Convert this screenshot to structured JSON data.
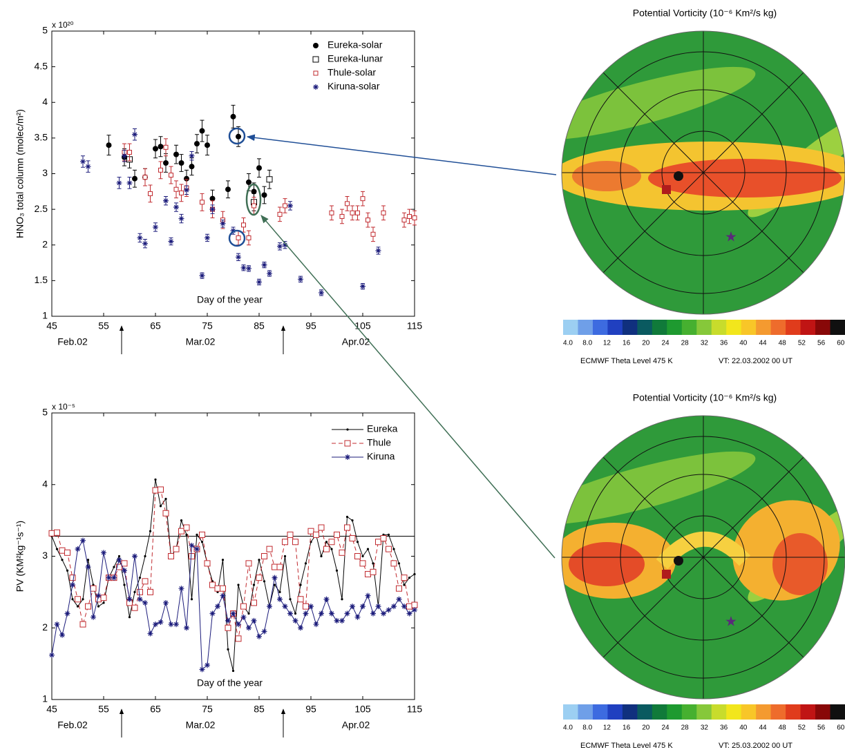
{
  "chart_data": [
    {
      "type": "scatter",
      "exponent": "x 10²⁰",
      "y_label": "HNO₃ total column (molec/m²)",
      "annotation": "Day of the year",
      "month_labels": [
        "Feb.02",
        "Mar.02",
        "Apr.02"
      ],
      "xlim": [
        45,
        115
      ],
      "xticks": [
        45,
        55,
        65,
        75,
        85,
        95,
        105,
        115
      ],
      "ylim": [
        1,
        5
      ],
      "yticks": [
        1,
        1.5,
        2,
        2.5,
        3,
        3.5,
        4,
        4.5,
        5
      ],
      "legend": "upper-right",
      "series": [
        {
          "name": "Eureka-solar",
          "color": "#000000",
          "marker": "circle-filled",
          "x": [
            56,
            59,
            61,
            63,
            65,
            66,
            67,
            69,
            70,
            71,
            72,
            73,
            74,
            75,
            76,
            79,
            80,
            81,
            83,
            84,
            85,
            86
          ],
          "values": [
            3.4,
            3.23,
            2.93,
            2.95,
            3.35,
            3.38,
            3.15,
            3.27,
            3.15,
            2.93,
            3.1,
            3.42,
            3.6,
            3.4,
            2.65,
            2.78,
            3.8,
            3.52,
            2.88,
            2.75,
            3.08,
            2.7
          ],
          "errors": [
            0.14,
            0.12,
            0.12,
            0.12,
            0.13,
            0.14,
            0.13,
            0.13,
            0.12,
            0.12,
            0.12,
            0.13,
            0.15,
            0.14,
            0.12,
            0.12,
            0.16,
            0.14,
            0.12,
            0.12,
            0.13,
            0.12
          ]
        },
        {
          "name": "Eureka-lunar",
          "color": "#000000",
          "marker": "square-open",
          "x": [
            60,
            84,
            87
          ],
          "values": [
            3.2,
            2.6,
            2.92
          ],
          "errors": [
            0.12,
            0.12,
            0.13
          ]
        },
        {
          "name": "Thule-solar",
          "color": "#c0282d",
          "marker": "square-small",
          "x": [
            59,
            60,
            63,
            64,
            66,
            67,
            68,
            69,
            70,
            71,
            74,
            76,
            78,
            81,
            82,
            83,
            84,
            89,
            90,
            99,
            101,
            102,
            103,
            104,
            105,
            106,
            107,
            109,
            113,
            114,
            115
          ],
          "values": [
            3.3,
            3.3,
            2.95,
            2.72,
            3.05,
            3.37,
            2.98,
            2.78,
            2.73,
            2.8,
            2.6,
            2.5,
            2.35,
            2.1,
            2.28,
            2.1,
            2.55,
            2.43,
            2.55,
            2.45,
            2.4,
            2.58,
            2.45,
            2.45,
            2.65,
            2.35,
            2.15,
            2.45,
            2.35,
            2.4,
            2.38
          ],
          "errors": [
            0.12,
            0.12,
            0.12,
            0.12,
            0.12,
            0.12,
            0.12,
            0.12,
            0.12,
            0.12,
            0.12,
            0.12,
            0.12,
            0.1,
            0.1,
            0.1,
            0.12,
            0.1,
            0.1,
            0.1,
            0.1,
            0.1,
            0.1,
            0.1,
            0.1,
            0.1,
            0.1,
            0.1,
            0.1,
            0.1,
            0.1
          ]
        },
        {
          "name": "Kiruna-solar",
          "color": "#1a1a7a",
          "marker": "asterisk",
          "x": [
            51,
            52,
            58,
            59,
            60,
            61,
            62,
            63,
            65,
            67,
            68,
            69,
            70,
            71,
            72,
            74,
            75,
            76,
            78,
            80,
            81,
            82,
            83,
            85,
            86,
            87,
            89,
            90,
            91,
            93,
            97,
            105,
            108
          ],
          "values": [
            3.17,
            3.1,
            2.87,
            3.25,
            2.87,
            3.55,
            2.1,
            2.02,
            2.25,
            2.62,
            2.05,
            2.53,
            2.37,
            2.77,
            3.25,
            1.57,
            2.1,
            2.5,
            2.3,
            2.2,
            1.83,
            1.68,
            1.67,
            1.48,
            1.72,
            1.6,
            1.98,
            2.0,
            2.55,
            1.52,
            1.33,
            1.42,
            1.92
          ],
          "errors": [
            0.08,
            0.08,
            0.08,
            0.08,
            0.08,
            0.08,
            0.06,
            0.06,
            0.06,
            0.06,
            0.05,
            0.06,
            0.06,
            0.06,
            0.06,
            0.04,
            0.05,
            0.06,
            0.05,
            0.05,
            0.05,
            0.04,
            0.04,
            0.04,
            0.04,
            0.04,
            0.05,
            0.05,
            0.06,
            0.04,
            0.04,
            0.04,
            0.05
          ]
        }
      ]
    },
    {
      "type": "line",
      "exponent": "x 10⁻⁵",
      "y_label": "PV (KM²kg⁻¹s⁻¹)",
      "annotation": "Day of the year",
      "month_labels": [
        "Feb.02",
        "Mar.02",
        "Apr.02"
      ],
      "xlim": [
        45,
        115
      ],
      "xticks": [
        45,
        55,
        65,
        75,
        85,
        95,
        105,
        115
      ],
      "ylim": [
        1,
        5
      ],
      "yticks": [
        1,
        2,
        3,
        4,
        5
      ],
      "hline": 3.28,
      "legend": "upper-right",
      "x": [
        45,
        46,
        47,
        48,
        49,
        50,
        51,
        52,
        53,
        54,
        55,
        56,
        57,
        58,
        59,
        60,
        61,
        62,
        63,
        64,
        65,
        66,
        67,
        68,
        69,
        70,
        71,
        72,
        73,
        74,
        75,
        76,
        77,
        78,
        79,
        80,
        81,
        82,
        83,
        84,
        85,
        86,
        87,
        88,
        89,
        90,
        91,
        92,
        93,
        94,
        95,
        96,
        97,
        98,
        99,
        100,
        101,
        102,
        103,
        104,
        105,
        106,
        107,
        108,
        109,
        110,
        111,
        112,
        113,
        114,
        115
      ],
      "series": [
        {
          "name": "Eureka",
          "color": "#000000",
          "marker": "dot",
          "line_style": "solid",
          "values": [
            3.28,
            3.1,
            2.95,
            2.8,
            2.4,
            2.3,
            2.4,
            2.95,
            2.6,
            2.3,
            2.35,
            2.7,
            2.85,
            3.0,
            2.6,
            2.15,
            2.5,
            2.7,
            3.0,
            3.35,
            4.07,
            3.7,
            3.8,
            3.0,
            3.1,
            3.5,
            3.3,
            2.4,
            3.3,
            3.2,
            2.9,
            2.65,
            2.5,
            2.95,
            1.7,
            1.4,
            2.6,
            2.3,
            2.2,
            2.6,
            2.95,
            2.65,
            2.3,
            2.6,
            2.5,
            3.0,
            2.4,
            2.2,
            2.6,
            2.9,
            3.2,
            3.3,
            3.0,
            3.2,
            3.1,
            2.8,
            2.4,
            3.55,
            3.5,
            3.2,
            3.0,
            3.1,
            2.9,
            2.3,
            3.3,
            3.3,
            3.1,
            2.9,
            2.6,
            2.7,
            2.75
          ]
        },
        {
          "name": "Thule",
          "color": "#c0282d",
          "marker": "square-open",
          "line_style": "dashed",
          "values": [
            3.32,
            3.33,
            3.08,
            3.05,
            2.7,
            2.4,
            2.05,
            2.3,
            2.55,
            2.4,
            2.42,
            2.7,
            2.7,
            2.85,
            2.9,
            2.35,
            2.28,
            2.5,
            2.65,
            2.5,
            3.92,
            3.93,
            3.6,
            3.0,
            3.1,
            3.35,
            3.4,
            3.0,
            3.1,
            3.3,
            2.9,
            2.6,
            2.55,
            2.55,
            2.0,
            2.2,
            1.85,
            2.3,
            2.9,
            2.35,
            2.7,
            3.0,
            3.1,
            2.85,
            2.85,
            3.2,
            3.3,
            3.2,
            2.4,
            2.3,
            3.35,
            3.3,
            3.4,
            3.1,
            3.2,
            3.3,
            3.05,
            3.4,
            3.25,
            3.0,
            2.9,
            2.75,
            2.78,
            3.2,
            3.25,
            3.1,
            2.9,
            2.55,
            2.7,
            2.3,
            2.32
          ]
        },
        {
          "name": "Kiruna",
          "color": "#1a1a7a",
          "marker": "asterisk",
          "line_style": "solid",
          "values": [
            1.62,
            2.05,
            1.9,
            2.2,
            2.6,
            3.1,
            3.22,
            2.85,
            2.15,
            2.45,
            3.05,
            2.7,
            2.7,
            2.95,
            2.8,
            2.4,
            3.0,
            2.4,
            2.35,
            1.92,
            2.05,
            2.08,
            2.35,
            2.05,
            2.05,
            2.55,
            2.0,
            3.15,
            3.1,
            1.42,
            1.48,
            2.2,
            2.3,
            2.45,
            2.1,
            2.2,
            2.05,
            2.15,
            2.0,
            2.1,
            1.88,
            1.95,
            2.3,
            2.7,
            2.4,
            2.3,
            2.2,
            2.1,
            2.0,
            2.2,
            2.3,
            2.05,
            2.2,
            2.4,
            2.2,
            2.1,
            2.1,
            2.2,
            2.3,
            2.15,
            2.3,
            2.45,
            2.2,
            2.3,
            2.2,
            2.25,
            2.3,
            2.4,
            2.3,
            2.2,
            2.25
          ]
        }
      ]
    }
  ],
  "maps": [
    {
      "title": "Potential Vorticity (10⁻⁶ Km²/s kg)",
      "colorbar_ticks": [
        "4.0",
        "8.0",
        "12",
        "16",
        "20",
        "24",
        "28",
        "32",
        "36",
        "40",
        "44",
        "48",
        "52",
        "56",
        "60"
      ],
      "level": "ECMWF Theta Level 475 K",
      "valid_time": "VT: 22.03.2002 00 UT"
    },
    {
      "title": "Potential Vorticity (10⁻⁶ Km²/s kg)",
      "colorbar_ticks": [
        "4.0",
        "8.0",
        "12",
        "16",
        "20",
        "24",
        "28",
        "32",
        "36",
        "40",
        "44",
        "48",
        "52",
        "56",
        "60"
      ],
      "level": "ECMWF Theta Level 475 K",
      "valid_time": "VT: 25.03.2002 00 UT"
    }
  ]
}
